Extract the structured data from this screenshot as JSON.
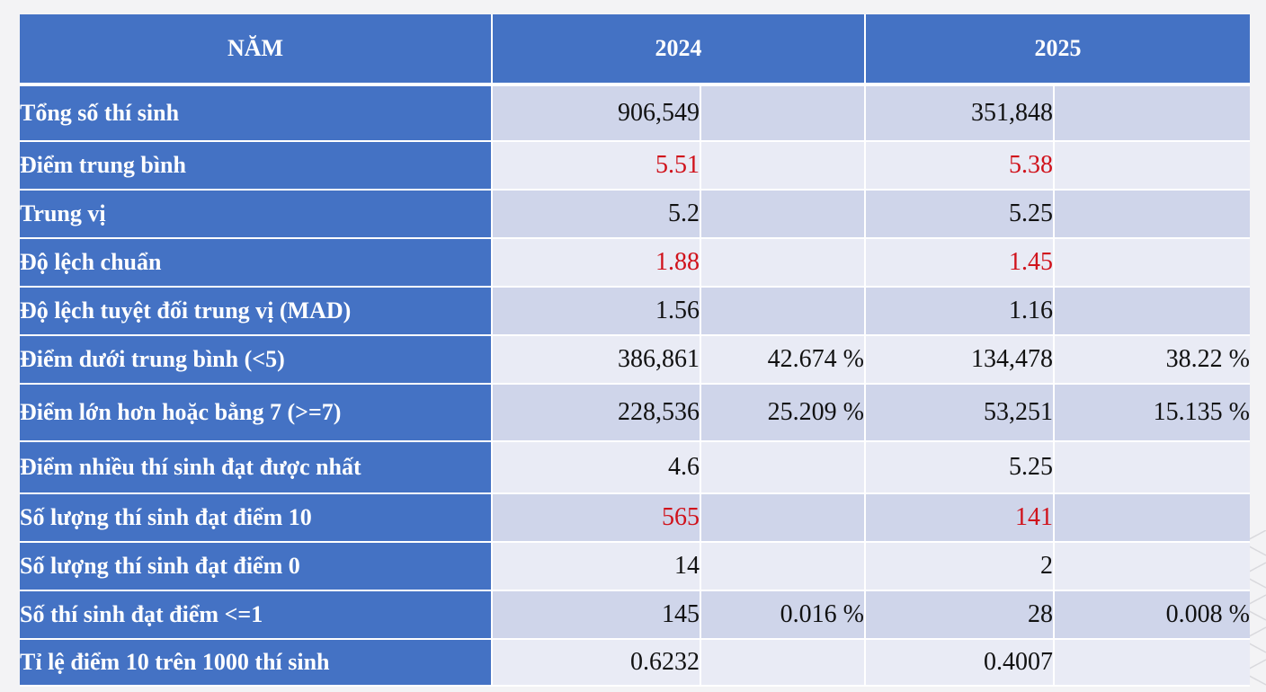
{
  "header": {
    "label": "NĂM",
    "year_2024": "2024",
    "year_2025": "2025"
  },
  "rows": [
    {
      "label": "Tổng số thí sinh",
      "v2024": "906,549",
      "p2024": "",
      "v2025": "351,848",
      "p2025": "",
      "highlight": false
    },
    {
      "label": "Điểm trung bình",
      "v2024": "5.51",
      "p2024": "",
      "v2025": "5.38",
      "p2025": "",
      "highlight": true
    },
    {
      "label": "Trung vị",
      "v2024": "5.2",
      "p2024": "",
      "v2025": "5.25",
      "p2025": "",
      "highlight": false
    },
    {
      "label": "Độ lệch chuẩn",
      "v2024": "1.88",
      "p2024": "",
      "v2025": "1.45",
      "p2025": "",
      "highlight": true
    },
    {
      "label": "Độ lệch tuyệt đối trung vị (MAD)",
      "v2024": "1.56",
      "p2024": "",
      "v2025": "1.16",
      "p2025": "",
      "highlight": false
    },
    {
      "label": "Điểm dưới trung bình (<5)",
      "v2024": "386,861",
      "p2024": "42.674 %",
      "v2025": "134,478",
      "p2025": "38.22 %",
      "highlight": false
    },
    {
      "label": "Điểm lớn hơn hoặc bằng 7 (>=7)",
      "v2024": "228,536",
      "p2024": "25.209 %",
      "v2025": "53,251",
      "p2025": "15.135 %",
      "highlight": false
    },
    {
      "label": "Điểm nhiều thí sinh đạt được nhất",
      "v2024": "4.6",
      "p2024": "",
      "v2025": "5.25",
      "p2025": "",
      "highlight": false
    },
    {
      "label": "Số lượng thí sinh đạt điểm 10",
      "v2024": "565",
      "p2024": "",
      "v2025": "141",
      "p2025": "",
      "highlight": true
    },
    {
      "label": "Số lượng thí sinh đạt điểm 0",
      "v2024": "14",
      "p2024": "",
      "v2025": "2",
      "p2025": "",
      "highlight": false
    },
    {
      "label": "Số thí sinh đạt điểm <=1",
      "v2024": "145",
      "p2024": "0.016 %",
      "v2025": "28",
      "p2025": "0.008 %",
      "highlight": false
    },
    {
      "label": "Tỉ lệ điểm 10 trên 1000 thí sinh",
      "v2024": "0.6232",
      "p2024": "",
      "v2025": "0.4007",
      "p2025": "",
      "highlight": false
    }
  ],
  "colors": {
    "header_bg": "#4472c4",
    "row_odd": "#cfd5ea",
    "row_even": "#e9ebf5",
    "highlight_text": "#d0121b"
  }
}
